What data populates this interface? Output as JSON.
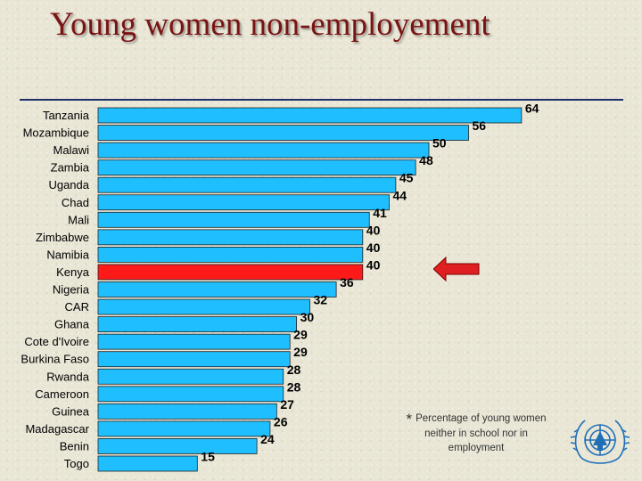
{
  "title": "Young women non-employement",
  "footnote": {
    "marker": "*",
    "text": "Percentage of young women neither in school nor in employment"
  },
  "colors": {
    "bar": "#1fbfff",
    "highlight": "#ff1a1a",
    "title": "#7a1414",
    "arrow": "#e02020"
  },
  "logo_icon": "un-emblem-icon",
  "arrow_icon": "left-arrow-icon",
  "chart_data": {
    "type": "bar",
    "orientation": "horizontal",
    "categories": [
      "Tanzania",
      "Mozambique",
      "Malawi",
      "Zambia",
      "Uganda",
      "Chad",
      "Mali",
      "Zimbabwe",
      "Namibia",
      "Kenya",
      "Nigeria",
      "CAR",
      "Ghana",
      "Cote d'Ivoire",
      "Burkina Faso",
      "Rwanda",
      "Cameroon",
      "Guinea",
      "Madagascar",
      "Benin",
      "Togo"
    ],
    "values": [
      64,
      56,
      50,
      48,
      45,
      44,
      41,
      40,
      40,
      40,
      36,
      32,
      30,
      29,
      29,
      28,
      28,
      27,
      26,
      24,
      15
    ],
    "highlighted_category": "Kenya",
    "data_labels": true,
    "xlim": [
      0,
      64
    ],
    "grid": false,
    "legend": "none"
  }
}
